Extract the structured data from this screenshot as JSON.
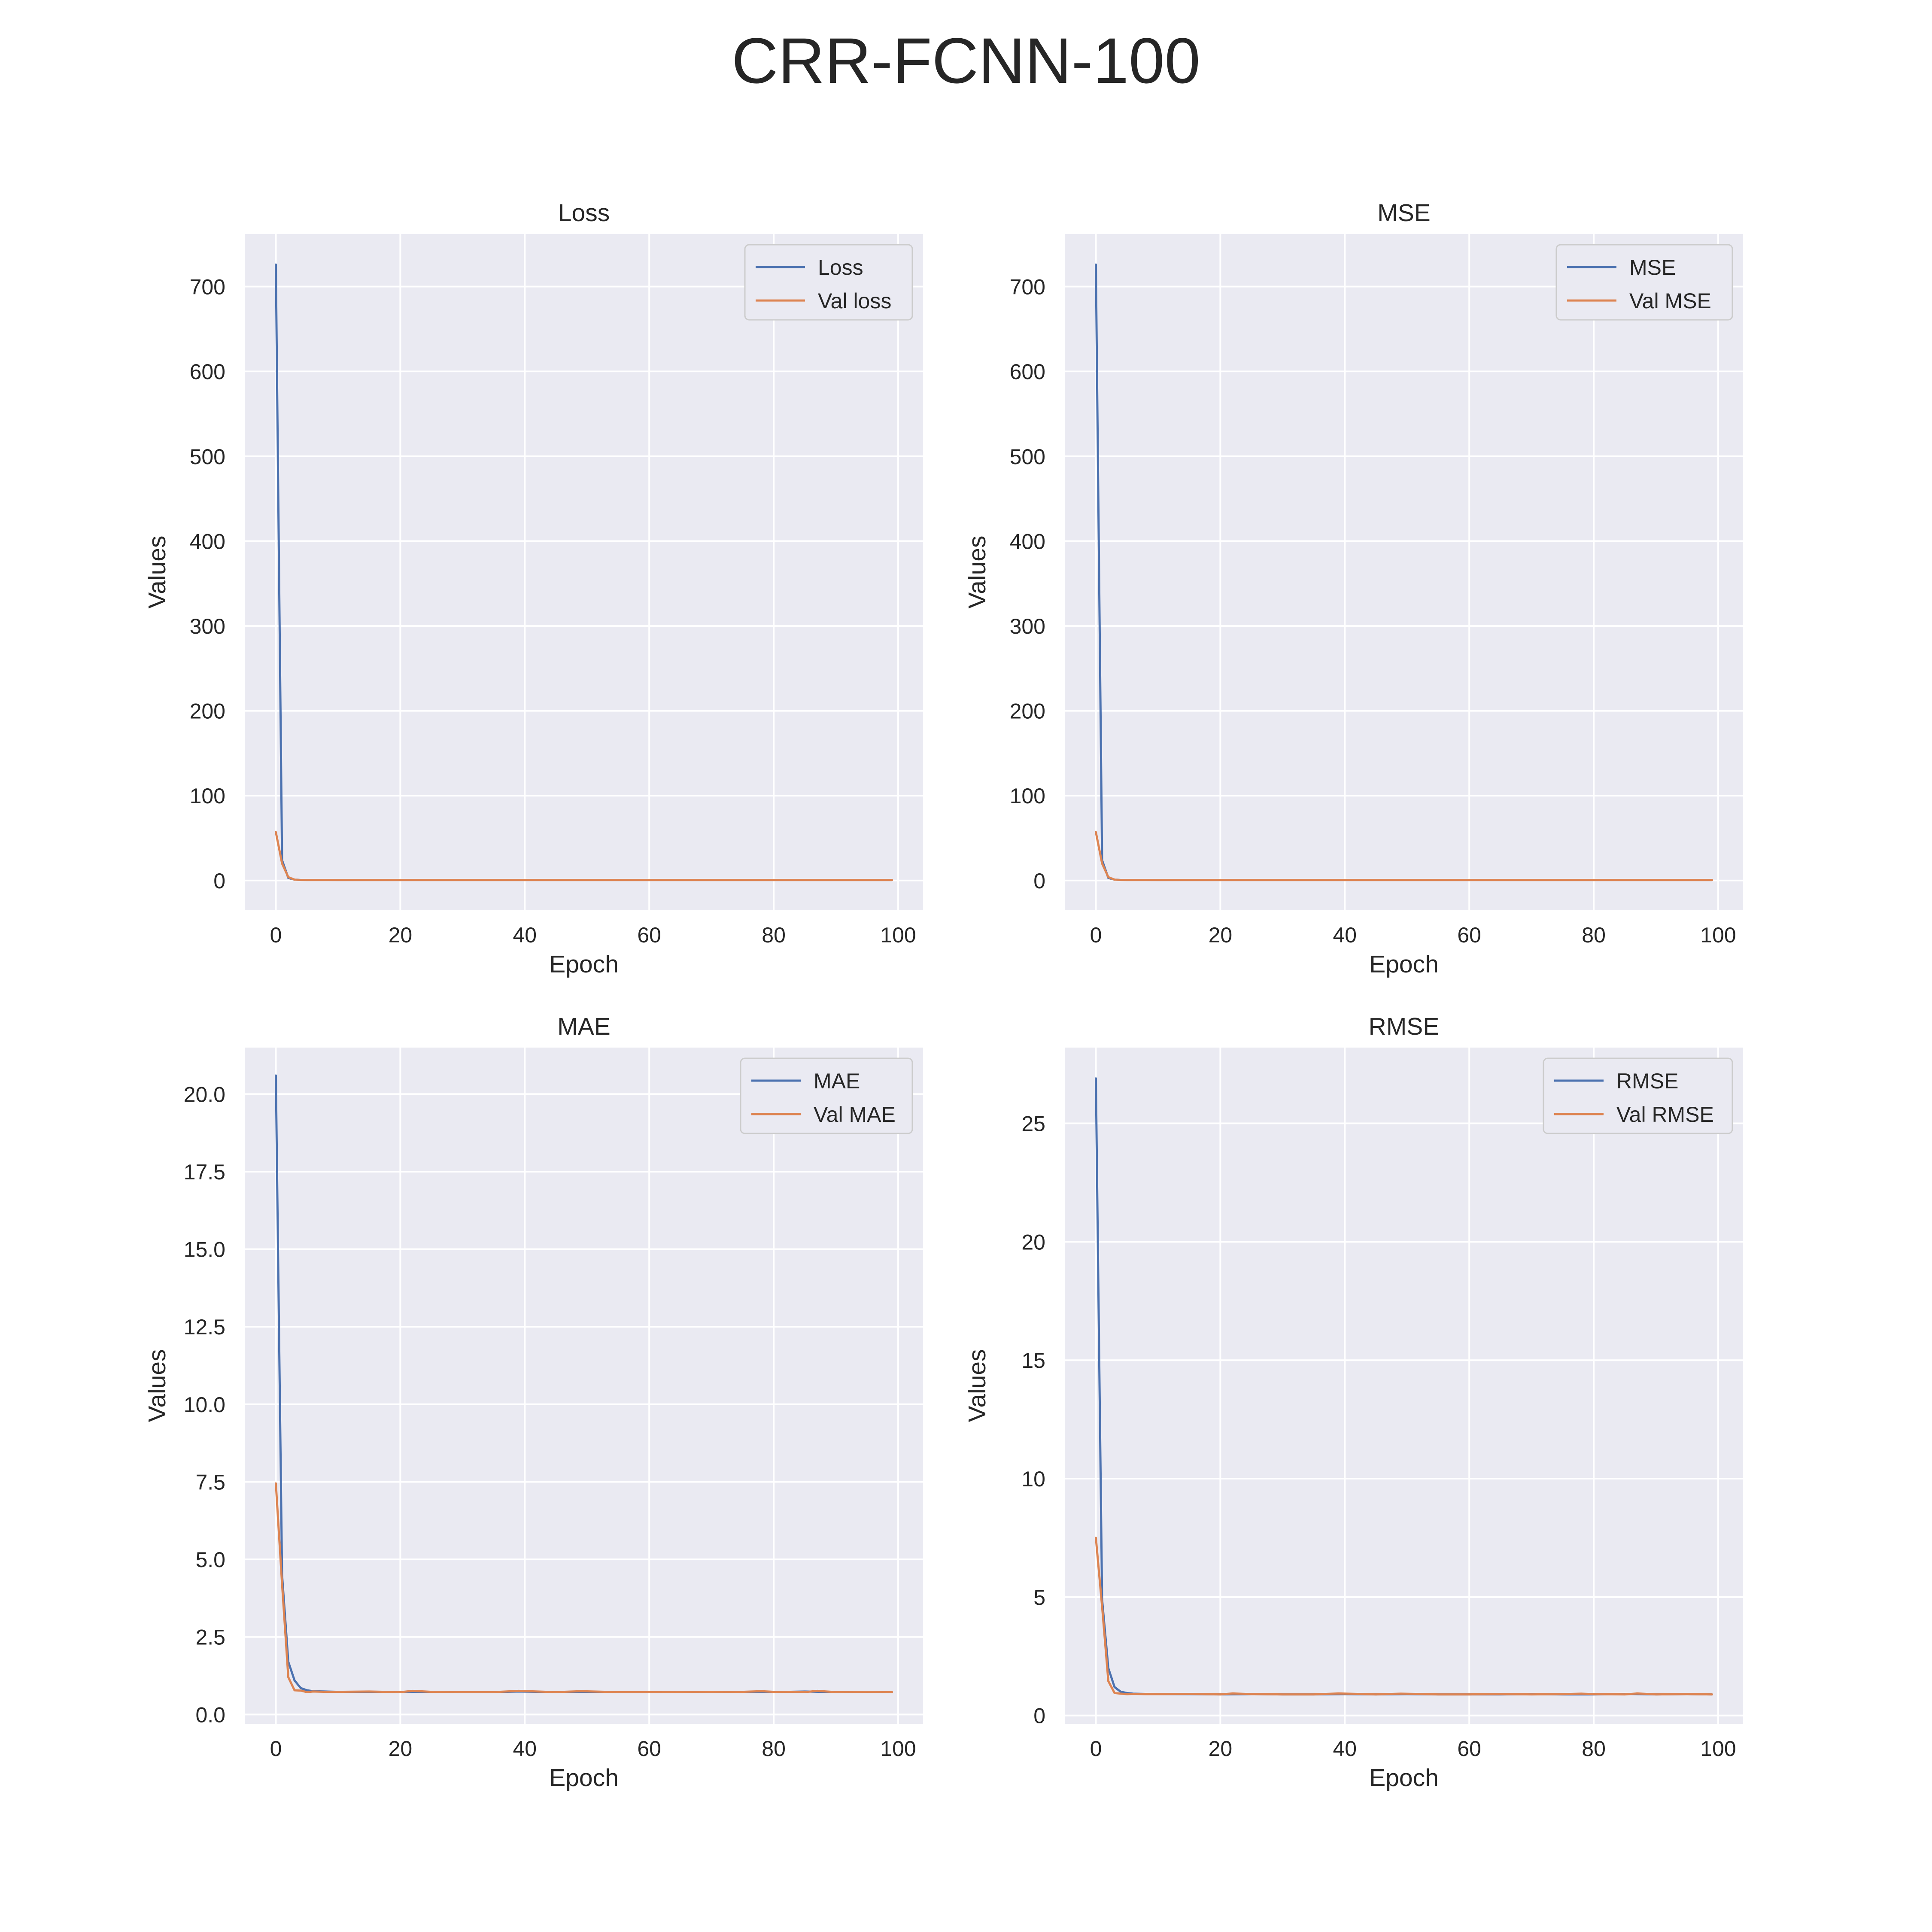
{
  "figure": {
    "title": "CRR-FCNN-100"
  },
  "colors": {
    "train": "#4c72b0",
    "val": "#dd8452",
    "axes_background": "#eaeaf2",
    "grid": "#ffffff"
  },
  "chart_data": [
    {
      "type": "line",
      "title": "Loss",
      "xlabel": "Epoch",
      "ylabel": "Values",
      "xlim": [
        -5,
        104
      ],
      "ylim": [
        -35,
        762
      ],
      "xticks": [
        0,
        20,
        40,
        60,
        80,
        100
      ],
      "yticks": [
        0,
        100,
        200,
        300,
        400,
        500,
        600,
        700
      ],
      "ytick_labels": [
        "0",
        "100",
        "200",
        "300",
        "400",
        "500",
        "600",
        "700"
      ],
      "grid": true,
      "legend_position": "top-right",
      "series": [
        {
          "name": "Loss",
          "color": "#4c72b0",
          "x": [
            0,
            1,
            2,
            3,
            4,
            5,
            10,
            20,
            40,
            60,
            80,
            99
          ],
          "y": [
            726,
            24,
            3.0,
            1.0,
            0.7,
            0.6,
            0.55,
            0.5,
            0.5,
            0.5,
            0.5,
            0.5
          ]
        },
        {
          "name": "Val loss",
          "color": "#dd8452",
          "x": [
            0,
            1,
            2,
            3,
            4,
            5,
            10,
            20,
            40,
            60,
            80,
            99
          ],
          "y": [
            57,
            20,
            4.0,
            1.0,
            0.6,
            0.55,
            0.5,
            0.5,
            0.5,
            0.5,
            0.5,
            0.5
          ]
        }
      ]
    },
    {
      "type": "line",
      "title": "MSE",
      "xlabel": "Epoch",
      "ylabel": "Values",
      "xlim": [
        -5,
        104
      ],
      "ylim": [
        -35,
        762
      ],
      "xticks": [
        0,
        20,
        40,
        60,
        80,
        100
      ],
      "yticks": [
        0,
        100,
        200,
        300,
        400,
        500,
        600,
        700
      ],
      "ytick_labels": [
        "0",
        "100",
        "200",
        "300",
        "400",
        "500",
        "600",
        "700"
      ],
      "grid": true,
      "legend_position": "top-right",
      "series": [
        {
          "name": "MSE",
          "color": "#4c72b0",
          "x": [
            0,
            1,
            2,
            3,
            4,
            5,
            10,
            20,
            40,
            60,
            80,
            99
          ],
          "y": [
            726,
            24,
            3.0,
            1.0,
            0.7,
            0.6,
            0.55,
            0.5,
            0.5,
            0.5,
            0.5,
            0.5
          ]
        },
        {
          "name": "Val MSE",
          "color": "#dd8452",
          "x": [
            0,
            1,
            2,
            3,
            4,
            5,
            10,
            20,
            40,
            60,
            80,
            99
          ],
          "y": [
            57,
            20,
            4.0,
            1.0,
            0.6,
            0.55,
            0.5,
            0.5,
            0.5,
            0.5,
            0.5,
            0.5
          ]
        }
      ]
    },
    {
      "type": "line",
      "title": "MAE",
      "xlabel": "Epoch",
      "ylabel": "Values",
      "xlim": [
        -5,
        104
      ],
      "ylim": [
        -0.3,
        21.5
      ],
      "xticks": [
        0,
        20,
        40,
        60,
        80,
        100
      ],
      "yticks": [
        0,
        2.5,
        5,
        7.5,
        10,
        12.5,
        15,
        17.5,
        20
      ],
      "ytick_labels": [
        "0.0",
        "2.5",
        "5.0",
        "7.5",
        "10.0",
        "12.5",
        "15.0",
        "17.5",
        "20.0"
      ],
      "grid": true,
      "legend_position": "top-right",
      "series": [
        {
          "name": "MAE",
          "color": "#4c72b0",
          "x": [
            0,
            1,
            2,
            3,
            4,
            5,
            6,
            8,
            10,
            15,
            20,
            25,
            30,
            35,
            39,
            45,
            50,
            55,
            60,
            65,
            70,
            75,
            80,
            85,
            90,
            95,
            99
          ],
          "y": [
            20.6,
            4.5,
            1.7,
            1.1,
            0.85,
            0.78,
            0.75,
            0.74,
            0.73,
            0.73,
            0.72,
            0.73,
            0.72,
            0.72,
            0.74,
            0.72,
            0.73,
            0.72,
            0.72,
            0.72,
            0.73,
            0.72,
            0.72,
            0.74,
            0.72,
            0.73,
            0.72
          ]
        },
        {
          "name": "Val MAE",
          "color": "#dd8452",
          "x": [
            0,
            1,
            2,
            3,
            4,
            5,
            6,
            8,
            10,
            15,
            20,
            22,
            25,
            30,
            35,
            39,
            45,
            49,
            55,
            60,
            65,
            70,
            75,
            78,
            80,
            85,
            87,
            90,
            95,
            99
          ],
          "y": [
            7.45,
            4.2,
            1.2,
            0.78,
            0.77,
            0.72,
            0.74,
            0.73,
            0.73,
            0.74,
            0.72,
            0.76,
            0.73,
            0.72,
            0.72,
            0.76,
            0.72,
            0.75,
            0.72,
            0.72,
            0.73,
            0.72,
            0.73,
            0.75,
            0.73,
            0.72,
            0.76,
            0.72,
            0.73,
            0.72
          ]
        }
      ]
    },
    {
      "type": "line",
      "title": "RMSE",
      "xlabel": "Epoch",
      "ylabel": "Values",
      "xlim": [
        -5,
        104
      ],
      "ylim": [
        -0.35,
        28.2
      ],
      "xticks": [
        0,
        20,
        40,
        60,
        80,
        100
      ],
      "yticks": [
        0,
        5,
        10,
        15,
        20,
        25
      ],
      "ytick_labels": [
        "0",
        "5",
        "10",
        "15",
        "20",
        "25"
      ],
      "grid": true,
      "legend_position": "top-right",
      "series": [
        {
          "name": "RMSE",
          "color": "#4c72b0",
          "x": [
            0,
            1,
            2,
            3,
            4,
            5,
            6,
            8,
            10,
            15,
            20,
            25,
            30,
            35,
            40,
            45,
            50,
            55,
            60,
            65,
            70,
            75,
            80,
            85,
            90,
            95,
            99
          ],
          "y": [
            26.9,
            4.9,
            2.0,
            1.2,
            1.0,
            0.95,
            0.92,
            0.91,
            0.9,
            0.9,
            0.89,
            0.9,
            0.89,
            0.89,
            0.9,
            0.89,
            0.9,
            0.89,
            0.89,
            0.89,
            0.9,
            0.89,
            0.89,
            0.91,
            0.89,
            0.9,
            0.89
          ]
        },
        {
          "name": "Val RMSE",
          "color": "#dd8452",
          "x": [
            0,
            1,
            2,
            3,
            4,
            5,
            6,
            8,
            10,
            15,
            20,
            22,
            25,
            30,
            35,
            39,
            45,
            49,
            55,
            60,
            65,
            70,
            75,
            78,
            80,
            85,
            87,
            90,
            95,
            99
          ],
          "y": [
            7.5,
            4.6,
            1.45,
            0.95,
            0.92,
            0.9,
            0.91,
            0.9,
            0.9,
            0.91,
            0.89,
            0.93,
            0.9,
            0.89,
            0.89,
            0.93,
            0.89,
            0.92,
            0.89,
            0.89,
            0.9,
            0.89,
            0.9,
            0.92,
            0.9,
            0.89,
            0.93,
            0.89,
            0.9,
            0.89
          ]
        }
      ]
    }
  ]
}
